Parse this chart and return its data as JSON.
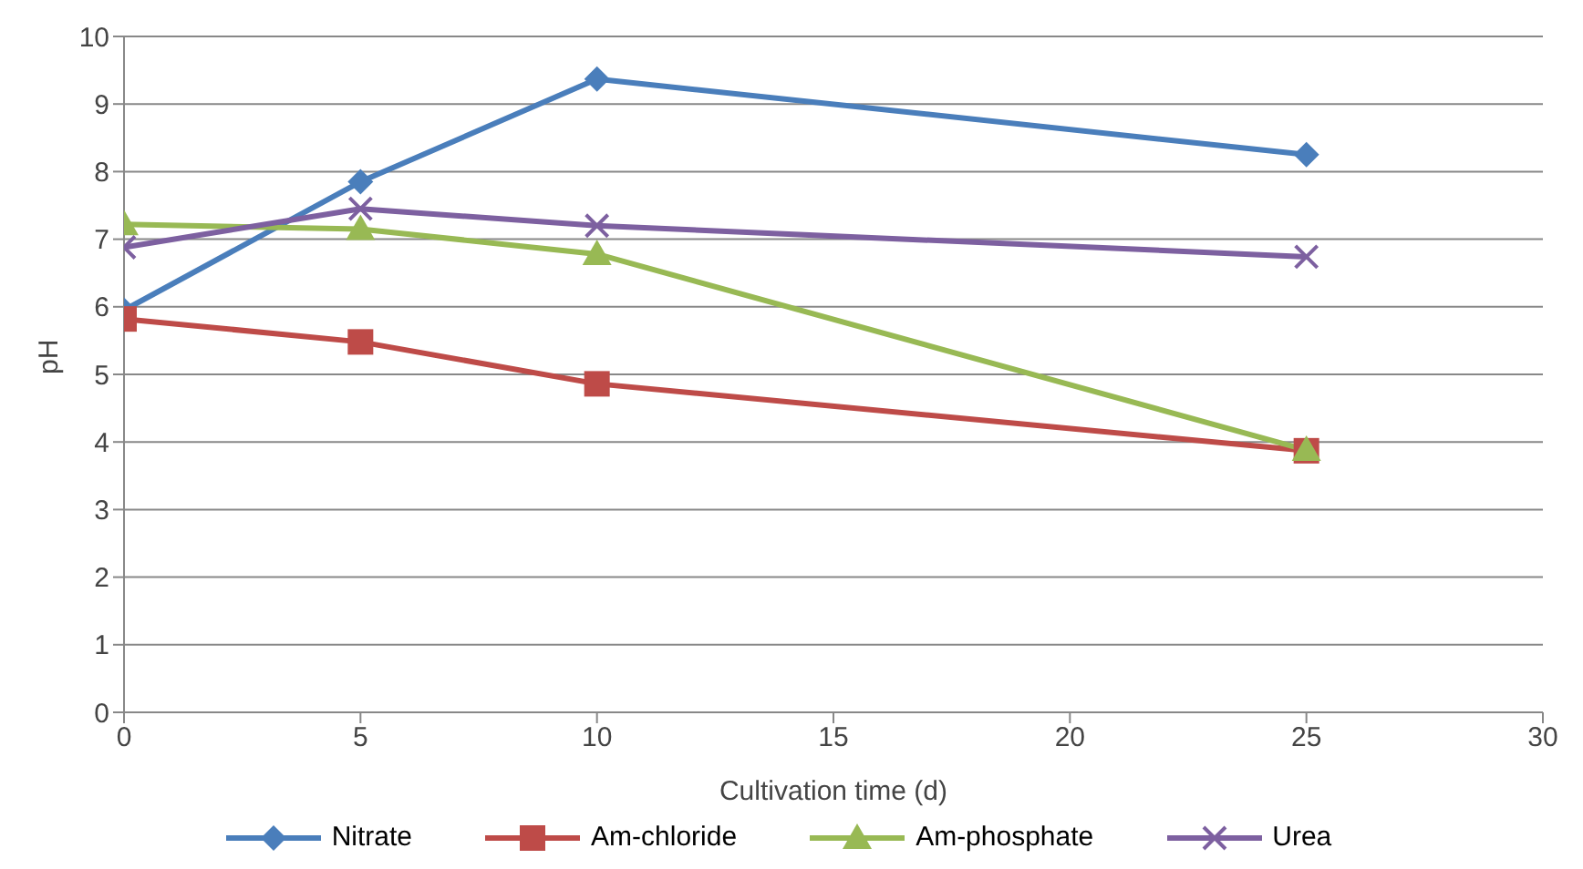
{
  "chart_data": {
    "type": "line",
    "xlabel": "Cultivation time (d)",
    "ylabel": "pH",
    "x": [
      0,
      5,
      10,
      25
    ],
    "series": [
      {
        "name": "Nitrate",
        "color": "#4a7ebb",
        "marker": "diamond",
        "values": [
          5.95,
          7.85,
          9.37,
          8.25
        ]
      },
      {
        "name": "Am-chloride",
        "color": "#be4b48",
        "marker": "square",
        "values": [
          5.82,
          5.48,
          4.86,
          3.87
        ]
      },
      {
        "name": "Am-phosphate",
        "color": "#98b954",
        "marker": "triangle",
        "values": [
          7.22,
          7.15,
          6.78,
          3.88
        ]
      },
      {
        "name": "Urea",
        "color": "#7d60a0",
        "marker": "cross",
        "values": [
          6.88,
          7.45,
          7.2,
          6.74
        ]
      }
    ],
    "xlim": [
      0,
      30
    ],
    "xticks": [
      0,
      5,
      10,
      15,
      20,
      25,
      30
    ],
    "ylim": [
      0,
      10
    ],
    "yticks": [
      0,
      1,
      2,
      3,
      4,
      5,
      6,
      7,
      8,
      9,
      10
    ],
    "grid": "y",
    "legend": "bottom",
    "line_style": "solid"
  }
}
